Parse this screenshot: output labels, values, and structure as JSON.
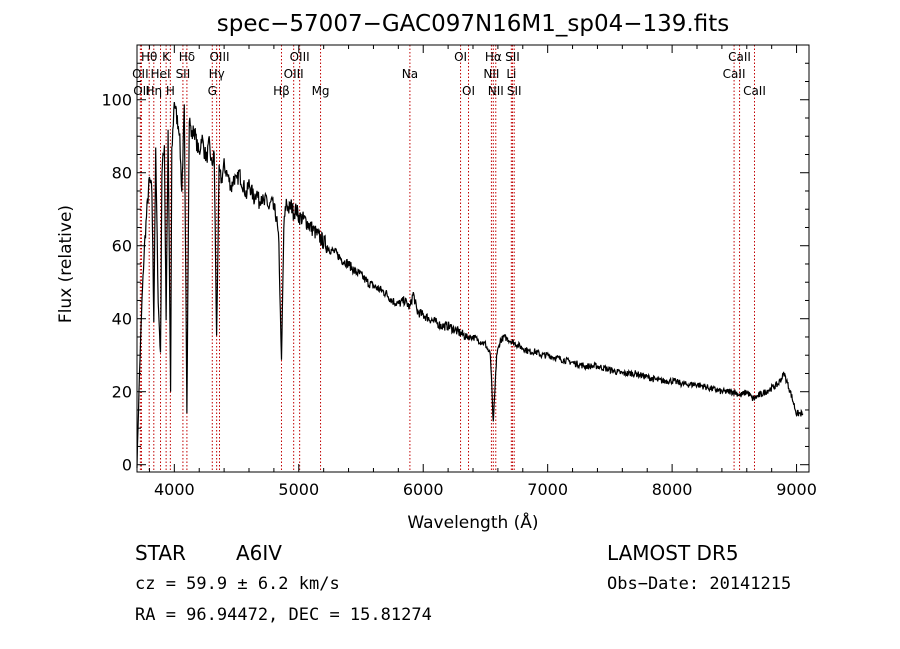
{
  "chart_data": {
    "type": "line",
    "title": "spec−57007−GAC097N16M1_sp04−139.fits",
    "xlabel": "Wavelength (Å)",
    "ylabel": "Flux (relative)",
    "xlim": [
      3700,
      9100
    ],
    "ylim": [
      -2,
      115
    ],
    "xticks": [
      4000,
      5000,
      6000,
      7000,
      8000,
      9000
    ],
    "yticks": [
      0,
      20,
      40,
      60,
      80,
      100
    ],
    "grid": false,
    "line_color": "#000000",
    "marker_color": "#c00000",
    "spectrum": {
      "x": [
        3700,
        3720,
        3740,
        3760,
        3780,
        3800,
        3820,
        3835,
        3850,
        3870,
        3889,
        3900,
        3920,
        3934,
        3950,
        3970,
        3980,
        4000,
        4020,
        4040,
        4060,
        4080,
        4101,
        4120,
        4140,
        4160,
        4180,
        4200,
        4220,
        4240,
        4260,
        4280,
        4300,
        4320,
        4340,
        4360,
        4380,
        4400,
        4420,
        4440,
        4460,
        4480,
        4500,
        4520,
        4540,
        4560,
        4580,
        4600,
        4620,
        4640,
        4660,
        4680,
        4700,
        4720,
        4740,
        4760,
        4780,
        4800,
        4820,
        4840,
        4861,
        4880,
        4900,
        4920,
        4940,
        4960,
        4980,
        5000,
        5050,
        5100,
        5150,
        5200,
        5250,
        5300,
        5350,
        5400,
        5450,
        5500,
        5550,
        5600,
        5650,
        5700,
        5750,
        5800,
        5850,
        5893,
        5920,
        5950,
        6000,
        6050,
        6100,
        6150,
        6200,
        6250,
        6300,
        6350,
        6400,
        6450,
        6500,
        6540,
        6563,
        6590,
        6620,
        6650,
        6700,
        6750,
        6800,
        6850,
        6900,
        6950,
        7000,
        7100,
        7200,
        7300,
        7400,
        7500,
        7600,
        7700,
        7800,
        7900,
        8000,
        8100,
        8200,
        8300,
        8400,
        8450,
        8500,
        8550,
        8600,
        8650,
        8700,
        8750,
        8800,
        8850,
        8900,
        8950,
        9000,
        9050
      ],
      "y": [
        0,
        25,
        45,
        60,
        70,
        78,
        75,
        40,
        85,
        45,
        30,
        80,
        88,
        40,
        90,
        20,
        85,
        100,
        95,
        92,
        75,
        97,
        15,
        95,
        90,
        92,
        88,
        85,
        90,
        86,
        84,
        88,
        82,
        85,
        35,
        80,
        78,
        82,
        80,
        78,
        76,
        79,
        77,
        80,
        78,
        76,
        74,
        77,
        75,
        73,
        75,
        72,
        74,
        71,
        73,
        70,
        72,
        70,
        68,
        60,
        28,
        65,
        72,
        70,
        71,
        69,
        70,
        68,
        67,
        65,
        63,
        61,
        59,
        58,
        56,
        55,
        53,
        52,
        50,
        49,
        48,
        47,
        45,
        44,
        45,
        43,
        47,
        42,
        41,
        40,
        39,
        38,
        38,
        37,
        36,
        35,
        35,
        34,
        33,
        30,
        11,
        30,
        34,
        35,
        34,
        33,
        32,
        31,
        31,
        30,
        30,
        29,
        28,
        27,
        27,
        26,
        25,
        25,
        24,
        23,
        23,
        22,
        22,
        21,
        20,
        20,
        20,
        19,
        20,
        18,
        19,
        20,
        21,
        22,
        25,
        20,
        14,
        14
      ]
    },
    "lines": [
      {
        "label": "Hθ",
        "x": 3798,
        "row": 0
      },
      {
        "label": "K",
        "x": 3934,
        "row": 0
      },
      {
        "label": "Hδ",
        "x": 4101,
        "row": 0
      },
      {
        "label": "OIII",
        "x": 4363,
        "row": 0
      },
      {
        "label": "OIII",
        "x": 5007,
        "row": 0
      },
      {
        "label": "OI",
        "x": 6300,
        "row": 0
      },
      {
        "label": "Hα",
        "x": 6563,
        "row": 0
      },
      {
        "label": "SII",
        "x": 6717,
        "row": 0
      },
      {
        "label": "CaII",
        "x": 8542,
        "row": 0
      },
      {
        "label": "OII",
        "x": 3727,
        "row": 1
      },
      {
        "label": "HeI",
        "x": 3889,
        "row": 1
      },
      {
        "label": "SII",
        "x": 4069,
        "row": 1
      },
      {
        "label": "Hγ",
        "x": 4340,
        "row": 1
      },
      {
        "label": "OIII",
        "x": 4959,
        "row": 1
      },
      {
        "label": "Na",
        "x": 5893,
        "row": 1
      },
      {
        "label": "NII",
        "x": 6548,
        "row": 1
      },
      {
        "label": "Li",
        "x": 6708,
        "row": 1
      },
      {
        "label": "CaII",
        "x": 8498,
        "row": 1
      },
      {
        "label": "OII",
        "x": 3736,
        "row": 2
      },
      {
        "label": "Hη",
        "x": 3835,
        "row": 2
      },
      {
        "label": "H",
        "x": 3968,
        "row": 2
      },
      {
        "label": "G",
        "x": 4305,
        "row": 2
      },
      {
        "label": "Hβ",
        "x": 4861,
        "row": 2
      },
      {
        "label": "Mg",
        "x": 5175,
        "row": 2
      },
      {
        "label": "OI",
        "x": 6364,
        "row": 2
      },
      {
        "label": "NII",
        "x": 6583,
        "row": 2
      },
      {
        "label": "SII",
        "x": 6731,
        "row": 2
      },
      {
        "label": "CaII",
        "x": 8662,
        "row": 2
      }
    ]
  },
  "info": {
    "object_class": "STAR",
    "subclass": "A6IV",
    "survey": "LAMOST DR5",
    "redshift": "cz = 59.9 ± 6.2 km/s",
    "obs_date": "Obs−Date: 20141215",
    "coords": "RA =  96.94472, DEC =  15.81274"
  }
}
